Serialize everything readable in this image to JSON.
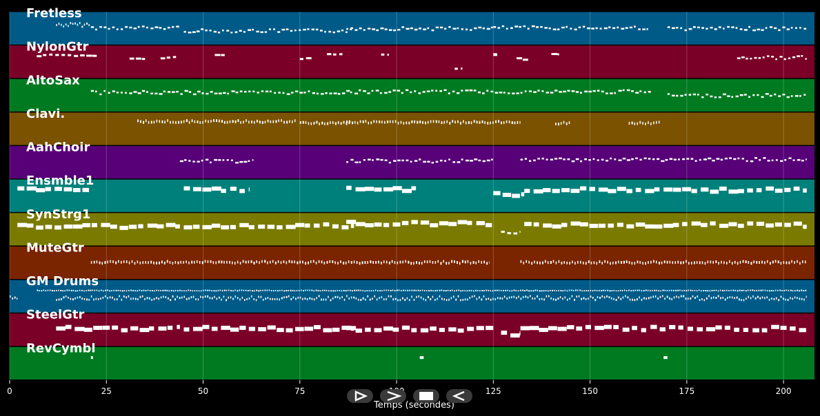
{
  "chart_data": {
    "type": "piano-roll",
    "xlabel": "Temps (secondes)",
    "xlim": [
      0,
      208
    ],
    "xticks": [
      0,
      25,
      50,
      75,
      100,
      125,
      150,
      175,
      200
    ],
    "grid": true,
    "tracks": [
      {
        "name": "Fretless",
        "color": "#005a87",
        "segments": [
          [
            12,
            21,
            "long",
            0.35
          ],
          [
            21,
            44,
            "short",
            0.15
          ],
          [
            45,
            89,
            "short",
            -0.05
          ],
          [
            87,
            125,
            "short",
            0.1
          ],
          [
            125,
            165,
            "short",
            0.15
          ],
          [
            170,
            206,
            "short",
            0.1
          ]
        ]
      },
      {
        "name": "NylonGtr",
        "color": "#7a0027",
        "segments": [
          [
            7,
            23,
            "mid",
            0.55
          ],
          [
            31,
            35,
            "mid",
            0.3
          ],
          [
            39,
            43,
            "mid",
            0.4
          ],
          [
            53,
            56,
            "mid",
            0.6
          ],
          [
            75,
            78,
            "mid",
            0.3
          ],
          [
            82,
            86,
            "mid",
            0.6
          ],
          [
            96,
            98,
            "mid",
            0.6
          ],
          [
            115,
            117,
            "mid",
            -0.3
          ],
          [
            125,
            126,
            "mid",
            0.6
          ],
          [
            131,
            134,
            "mid",
            0.3
          ],
          [
            140,
            142,
            "mid",
            0.6
          ],
          [
            188,
            206,
            "short",
            0.4
          ]
        ]
      },
      {
        "name": "AltoSax",
        "color": "#007a20",
        "segments": [
          [
            21,
            88,
            "short",
            0.3
          ],
          [
            88,
            166,
            "short",
            0.35
          ],
          [
            170,
            206,
            "short",
            0.1
          ]
        ]
      },
      {
        "name": "Clavi.",
        "color": "#7a5200",
        "segments": [
          [
            33,
            74,
            "tiny",
            0.6
          ],
          [
            75,
            88,
            "tiny",
            0.5
          ],
          [
            87,
            132,
            "tiny",
            0.55
          ],
          [
            141,
            145,
            "tiny",
            0.5
          ],
          [
            160,
            168,
            "tiny",
            0.5
          ]
        ]
      },
      {
        "name": "AahChoir",
        "color": "#570078",
        "segments": [
          [
            44,
            63,
            "short",
            0.2
          ],
          [
            87,
            125,
            "short",
            0.2
          ],
          [
            132,
            206,
            "short",
            0.3
          ]
        ]
      },
      {
        "name": "Ensmble1",
        "color": "#00807a",
        "segments": [
          [
            2,
            21,
            "thick",
            0.5
          ],
          [
            45,
            62,
            "thick",
            0.5
          ],
          [
            87,
            105,
            "thick",
            0.55
          ],
          [
            125,
            133,
            "thick",
            0.2
          ],
          [
            133,
            206,
            "thick",
            0.5
          ]
        ]
      },
      {
        "name": "SynStrg1",
        "color": "#7a7a00",
        "segments": [
          [
            2,
            44,
            "thick",
            0.3
          ],
          [
            45,
            89,
            "thick",
            0.35
          ],
          [
            87,
            125,
            "thick",
            0.5
          ],
          [
            127,
            132,
            "mid",
            -0.1
          ],
          [
            133,
            206,
            "thick",
            0.4
          ]
        ]
      },
      {
        "name": "MuteGtr",
        "color": "#7a2400",
        "segments": [
          [
            21,
            124,
            "tiny",
            0.15
          ],
          [
            132,
            206,
            "tiny",
            0.15
          ]
        ]
      },
      {
        "name": "GM Drums",
        "color": "#005a87",
        "segments": [
          [
            0,
            2,
            "drum",
            0.1
          ],
          [
            7,
            206,
            "drum-hi",
            0.5
          ],
          [
            12,
            206,
            "drum",
            0.0
          ]
        ]
      },
      {
        "name": "SteelGtr",
        "color": "#7a0027",
        "segments": [
          [
            12,
            44,
            "thick",
            0.2
          ],
          [
            45,
            89,
            "thick",
            0.2
          ],
          [
            87,
            125,
            "thick",
            0.15
          ],
          [
            127,
            132,
            "thick",
            -0.15
          ],
          [
            132,
            206,
            "thick",
            0.2
          ]
        ]
      },
      {
        "name": "RevCymbl",
        "color": "#007a20",
        "segments": [
          [
            21,
            21.3,
            "mid",
            0.5
          ],
          [
            106,
            107,
            "mid",
            0.5
          ],
          [
            169,
            170,
            "mid",
            0.5
          ]
        ]
      }
    ]
  }
}
